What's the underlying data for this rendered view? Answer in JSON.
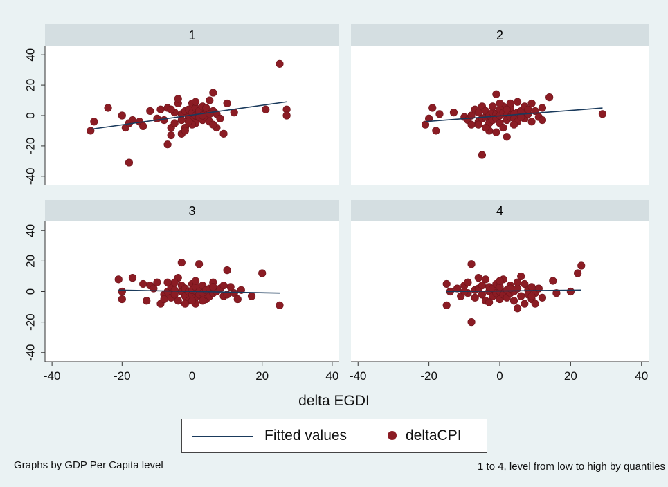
{
  "chart_data": {
    "type": "scatter",
    "xlabel": "delta EGDI",
    "xticks": [
      -40,
      -20,
      0,
      20,
      40
    ],
    "yticks": [
      -40,
      -20,
      0,
      20,
      40
    ],
    "xlim": [
      -42,
      42
    ],
    "ylim": [
      -46,
      46
    ],
    "grid": false,
    "legend": {
      "position": "bottom-center",
      "entries": [
        "Fitted values",
        "deltaCPI"
      ]
    },
    "series_colors": {
      "deltaCPI": "#8b1c24",
      "Fitted values": "#1a3a5c"
    },
    "panels": [
      {
        "title": "1",
        "fitted": {
          "x": [
            -29,
            27
          ],
          "y": [
            -9,
            9
          ]
        },
        "points": [
          [
            -29,
            -10
          ],
          [
            -28,
            -4
          ],
          [
            -24,
            5
          ],
          [
            -20,
            0
          ],
          [
            -19,
            -8
          ],
          [
            -18,
            -5
          ],
          [
            -18,
            -31
          ],
          [
            -17,
            -3
          ],
          [
            -15,
            -4
          ],
          [
            -14,
            -7
          ],
          [
            -12,
            3
          ],
          [
            -10,
            -2
          ],
          [
            -9,
            4
          ],
          [
            -8,
            -3
          ],
          [
            -7,
            -19
          ],
          [
            -7,
            5
          ],
          [
            -6,
            -8
          ],
          [
            -6,
            -13
          ],
          [
            -5,
            -5
          ],
          [
            -5,
            2
          ],
          [
            -4,
            8
          ],
          [
            -4,
            11
          ],
          [
            -3,
            -12
          ],
          [
            -3,
            -3
          ],
          [
            -3,
            1
          ],
          [
            -2,
            3
          ],
          [
            -2,
            -8
          ],
          [
            -1,
            -1
          ],
          [
            -1,
            4
          ],
          [
            0,
            -3
          ],
          [
            0,
            2
          ],
          [
            0,
            8
          ],
          [
            1,
            0
          ],
          [
            1,
            5
          ],
          [
            1,
            -5
          ],
          [
            2,
            1
          ],
          [
            2,
            -1
          ],
          [
            2,
            3
          ],
          [
            3,
            -2
          ],
          [
            3,
            6
          ],
          [
            3,
            -3
          ],
          [
            4,
            2
          ],
          [
            4,
            -1
          ],
          [
            5,
            10
          ],
          [
            5,
            -4
          ],
          [
            6,
            3
          ],
          [
            6,
            15
          ],
          [
            7,
            -8
          ],
          [
            7,
            1
          ],
          [
            8,
            -2
          ],
          [
            9,
            -12
          ],
          [
            10,
            8
          ],
          [
            12,
            2
          ],
          [
            21,
            4
          ],
          [
            25,
            34
          ],
          [
            27,
            4
          ],
          [
            27,
            0
          ],
          [
            -2,
            -10
          ],
          [
            0,
            -6
          ],
          [
            1,
            9
          ],
          [
            4,
            5
          ],
          [
            -6,
            4
          ],
          [
            6,
            -6
          ],
          [
            -1,
            -4
          ],
          [
            3,
            0
          ],
          [
            5,
            1
          ]
        ]
      },
      {
        "title": "2",
        "fitted": {
          "x": [
            -21,
            29
          ],
          "y": [
            -4,
            5
          ]
        },
        "points": [
          [
            -21,
            -6
          ],
          [
            -20,
            -2
          ],
          [
            -19,
            5
          ],
          [
            -18,
            -10
          ],
          [
            -17,
            1
          ],
          [
            -13,
            2
          ],
          [
            -10,
            -1
          ],
          [
            -9,
            -3
          ],
          [
            -8,
            0
          ],
          [
            -8,
            -6
          ],
          [
            -7,
            4
          ],
          [
            -6,
            -4
          ],
          [
            -6,
            2
          ],
          [
            -5,
            -2
          ],
          [
            -5,
            -26
          ],
          [
            -5,
            6
          ],
          [
            -4,
            -1
          ],
          [
            -4,
            3
          ],
          [
            -3,
            -10
          ],
          [
            -3,
            0
          ],
          [
            -3,
            -5
          ],
          [
            -2,
            2
          ],
          [
            -2,
            -3
          ],
          [
            -1,
            1
          ],
          [
            -1,
            -2
          ],
          [
            -1,
            14
          ],
          [
            0,
            0
          ],
          [
            0,
            -5
          ],
          [
            0,
            4
          ],
          [
            1,
            2
          ],
          [
            1,
            -8
          ],
          [
            1,
            6
          ],
          [
            2,
            0
          ],
          [
            2,
            -3
          ],
          [
            2,
            -14
          ],
          [
            3,
            3
          ],
          [
            3,
            -1
          ],
          [
            3,
            5
          ],
          [
            4,
            1
          ],
          [
            4,
            -2
          ],
          [
            5,
            9
          ],
          [
            5,
            -4
          ],
          [
            5,
            2
          ],
          [
            6,
            0
          ],
          [
            6,
            3
          ],
          [
            7,
            6
          ],
          [
            7,
            -2
          ],
          [
            8,
            1
          ],
          [
            9,
            -4
          ],
          [
            10,
            3
          ],
          [
            11,
            -1
          ],
          [
            12,
            -3
          ],
          [
            12,
            5
          ],
          [
            14,
            12
          ],
          [
            29,
            1
          ],
          [
            -4,
            -8
          ],
          [
            -2,
            6
          ],
          [
            0,
            8
          ],
          [
            2,
            4
          ],
          [
            4,
            -6
          ],
          [
            6,
            -1
          ],
          [
            8,
            4
          ],
          [
            -6,
            -6
          ],
          [
            -1,
            -11
          ],
          [
            3,
            8
          ],
          [
            9,
            8
          ]
        ]
      },
      {
        "title": "3",
        "fitted": {
          "x": [
            -21,
            25
          ],
          "y": [
            1,
            -1
          ]
        },
        "points": [
          [
            -21,
            8
          ],
          [
            -20,
            -5
          ],
          [
            -20,
            0
          ],
          [
            -17,
            9
          ],
          [
            -14,
            5
          ],
          [
            -13,
            -6
          ],
          [
            -12,
            4
          ],
          [
            -11,
            2
          ],
          [
            -10,
            6
          ],
          [
            -9,
            -8
          ],
          [
            -8,
            -2
          ],
          [
            -7,
            0
          ],
          [
            -6,
            3
          ],
          [
            -6,
            -4
          ],
          [
            -5,
            1
          ],
          [
            -5,
            -2
          ],
          [
            -4,
            9
          ],
          [
            -4,
            -6
          ],
          [
            -3,
            19
          ],
          [
            -3,
            0
          ],
          [
            -3,
            4
          ],
          [
            -2,
            -3
          ],
          [
            -2,
            2
          ],
          [
            -1,
            0
          ],
          [
            -1,
            -6
          ],
          [
            0,
            5
          ],
          [
            0,
            -2
          ],
          [
            0,
            1
          ],
          [
            1,
            -4
          ],
          [
            1,
            3
          ],
          [
            1,
            -8
          ],
          [
            2,
            18
          ],
          [
            2,
            0
          ],
          [
            2,
            -2
          ],
          [
            3,
            4
          ],
          [
            3,
            -1
          ],
          [
            4,
            1
          ],
          [
            4,
            -5
          ],
          [
            5,
            2
          ],
          [
            5,
            -3
          ],
          [
            6,
            6
          ],
          [
            6,
            -1
          ],
          [
            7,
            0
          ],
          [
            8,
            2
          ],
          [
            9,
            -3
          ],
          [
            10,
            14
          ],
          [
            10,
            -2
          ],
          [
            11,
            3
          ],
          [
            12,
            -1
          ],
          [
            13,
            -5
          ],
          [
            14,
            1
          ],
          [
            17,
            -3
          ],
          [
            20,
            12
          ],
          [
            25,
            -9
          ],
          [
            -8,
            -5
          ],
          [
            -5,
            6
          ],
          [
            -2,
            -8
          ],
          [
            1,
            7
          ],
          [
            3,
            -6
          ],
          [
            6,
            3
          ],
          [
            9,
            4
          ],
          [
            -7,
            6
          ],
          [
            0,
            -6
          ]
        ]
      },
      {
        "title": "4",
        "fitted": {
          "x": [
            -15,
            23
          ],
          "y": [
            0,
            1
          ]
        },
        "points": [
          [
            -15,
            -9
          ],
          [
            -15,
            5
          ],
          [
            -14,
            0
          ],
          [
            -12,
            2
          ],
          [
            -11,
            -3
          ],
          [
            -10,
            4
          ],
          [
            -9,
            6
          ],
          [
            -9,
            -1
          ],
          [
            -8,
            -20
          ],
          [
            -8,
            18
          ],
          [
            -7,
            1
          ],
          [
            -7,
            -4
          ],
          [
            -6,
            2
          ],
          [
            -5,
            -2
          ],
          [
            -5,
            4
          ],
          [
            -4,
            -6
          ],
          [
            -4,
            8
          ],
          [
            -3,
            0
          ],
          [
            -3,
            3
          ],
          [
            -2,
            -3
          ],
          [
            -2,
            2
          ],
          [
            -1,
            -1
          ],
          [
            -1,
            5
          ],
          [
            0,
            0
          ],
          [
            0,
            -5
          ],
          [
            0,
            3
          ],
          [
            1,
            -2
          ],
          [
            1,
            8
          ],
          [
            2,
            1
          ],
          [
            2,
            -4
          ],
          [
            3,
            4
          ],
          [
            3,
            -1
          ],
          [
            4,
            0
          ],
          [
            4,
            -6
          ],
          [
            5,
            2
          ],
          [
            5,
            -11
          ],
          [
            6,
            -3
          ],
          [
            7,
            5
          ],
          [
            7,
            -8
          ],
          [
            8,
            1
          ],
          [
            8,
            -2
          ],
          [
            9,
            3
          ],
          [
            9,
            -5
          ],
          [
            10,
            -1
          ],
          [
            10,
            -8
          ],
          [
            11,
            2
          ],
          [
            15,
            7
          ],
          [
            16,
            -1
          ],
          [
            20,
            0
          ],
          [
            22,
            12
          ],
          [
            23,
            17
          ],
          [
            -6,
            9
          ],
          [
            -3,
            -7
          ],
          [
            0,
            7
          ],
          [
            3,
            2
          ],
          [
            6,
            10
          ],
          [
            9,
            -3
          ],
          [
            -10,
            0
          ],
          [
            12,
            -4
          ],
          [
            5,
            6
          ]
        ]
      }
    ],
    "notes": {
      "left": "Graphs by GDP Per Capita level",
      "right": "1 to 4, level from low to high by quantiles"
    }
  }
}
